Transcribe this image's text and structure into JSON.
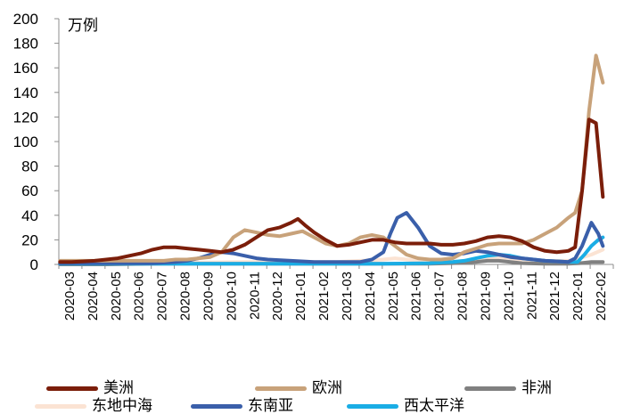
{
  "chart_data": {
    "type": "line",
    "title": "",
    "unit_label": "万例",
    "xlabel": "",
    "ylabel": "万例",
    "ylim": [
      0,
      200
    ],
    "yticks": [
      0,
      20,
      40,
      60,
      80,
      100,
      120,
      140,
      160,
      180,
      200
    ],
    "grid": false,
    "legend_position": "bottom",
    "categories": [
      "2020-03",
      "2020-04",
      "2020-05",
      "2020-06",
      "2020-07",
      "2020-08",
      "2020-09",
      "2020-10",
      "2020-11",
      "2020-12",
      "2021-01",
      "2021-02",
      "2021-03",
      "2021-04",
      "2021-05",
      "2021-06",
      "2021-07",
      "2021-08",
      "2021-09",
      "2021-10",
      "2021-11",
      "2021-12",
      "2022-01",
      "2022-02"
    ],
    "series": [
      {
        "name": "美洲",
        "color": "#7B1E0A",
        "x": [
          0,
          0.5,
          1,
          1.5,
          2,
          2.5,
          3,
          3.5,
          4,
          4.5,
          5,
          5.5,
          6,
          6.5,
          7,
          7.5,
          8,
          8.5,
          9,
          9.5,
          10,
          10.3,
          10.6,
          11,
          11.5,
          12,
          12.5,
          13,
          13.5,
          14,
          14.5,
          15,
          15.5,
          16,
          16.5,
          17,
          17.5,
          18,
          18.5,
          19,
          19.5,
          20,
          20.5,
          21,
          21.5,
          22,
          22.3,
          22.6,
          22.9,
          23.2,
          23.5
        ],
        "values": [
          2,
          2,
          2.5,
          3,
          4,
          5,
          7,
          9,
          12,
          14,
          14,
          13,
          12,
          11,
          10,
          12,
          16,
          22,
          28,
          30,
          34,
          37,
          32,
          26,
          20,
          15,
          16,
          18,
          20,
          20,
          18,
          17,
          17,
          17,
          16,
          16,
          17,
          19,
          22,
          23,
          22,
          19,
          14,
          11,
          10,
          11,
          14,
          60,
          118,
          115,
          55
        ]
      },
      {
        "name": "欧洲",
        "color": "#C8A27A",
        "x": [
          0,
          0.5,
          1,
          1.5,
          2,
          2.5,
          3,
          3.5,
          4,
          4.5,
          5,
          5.5,
          6,
          6.5,
          7,
          7.5,
          8,
          8.5,
          9,
          9.5,
          10,
          10.5,
          11,
          11.5,
          12,
          12.5,
          13,
          13.5,
          14,
          14.5,
          15,
          15.5,
          16,
          16.5,
          17,
          17.5,
          18,
          18.5,
          19,
          19.5,
          20,
          20.5,
          21,
          21.5,
          22,
          22.3,
          22.6,
          22.9,
          23.2,
          23.5
        ],
        "values": [
          3,
          3,
          3,
          3,
          3,
          3,
          3,
          3,
          3,
          3,
          4,
          4,
          5,
          6,
          10,
          22,
          28,
          26,
          24,
          23,
          25,
          27,
          22,
          17,
          15,
          17,
          22,
          24,
          22,
          15,
          8,
          5,
          4,
          4,
          5,
          10,
          13,
          16,
          17,
          17,
          17,
          20,
          25,
          30,
          38,
          42,
          60,
          125,
          170,
          148
        ]
      },
      {
        "name": "非洲",
        "color": "#808080",
        "x": [
          0,
          2,
          4,
          6,
          8,
          10,
          12,
          14,
          16,
          17,
          18,
          18.5,
          19,
          19.5,
          20,
          21,
          22,
          22.5,
          23,
          23.5
        ],
        "values": [
          0,
          0,
          0.5,
          0.5,
          0.5,
          0.5,
          0.5,
          0.5,
          0.5,
          1,
          2,
          3,
          3,
          2,
          1,
          0.5,
          0.5,
          1,
          2,
          2
        ]
      },
      {
        "name": "东地中海",
        "color": "#FBE3D3",
        "x": [
          0,
          2,
          4,
          6,
          8,
          10,
          12,
          13,
          14,
          14.5,
          15,
          15.5,
          16,
          17,
          18,
          19,
          20,
          21,
          22,
          22.5,
          23,
          23.5
        ],
        "values": [
          1,
          1,
          1,
          1.5,
          2,
          2,
          2,
          3,
          4,
          5,
          4,
          3,
          2,
          2,
          4,
          6,
          4,
          3,
          3,
          5,
          8,
          12
        ]
      },
      {
        "name": "东南亚",
        "color": "#3A5FAA",
        "x": [
          0,
          1,
          2,
          3,
          4,
          5,
          5.5,
          6,
          6.5,
          7,
          7.5,
          8,
          8.5,
          9,
          10,
          11,
          12,
          13,
          13.5,
          14,
          14.3,
          14.6,
          15,
          15.5,
          16,
          16.5,
          17,
          17.5,
          18,
          18.5,
          19,
          19.5,
          20,
          21,
          22,
          22.3,
          22.6,
          23,
          23.3,
          23.5
        ],
        "values": [
          1,
          1,
          1,
          1,
          1,
          2,
          3,
          5,
          8,
          10,
          9,
          7,
          5,
          4,
          3,
          2,
          2,
          2,
          4,
          10,
          25,
          38,
          42,
          30,
          15,
          9,
          8,
          9,
          11,
          10,
          8,
          6,
          5,
          3,
          2,
          5,
          15,
          34,
          25,
          15
        ]
      },
      {
        "name": "西太平洋",
        "color": "#1AADE5",
        "x": [
          0,
          2,
          4,
          6,
          8,
          10,
          12,
          14,
          16,
          17,
          17.5,
          18,
          18.5,
          19,
          19.5,
          20,
          21,
          22,
          22.4,
          22.7,
          23,
          23.3,
          23.5
        ],
        "values": [
          0.5,
          0.5,
          0.5,
          0.5,
          0.5,
          0.5,
          0.5,
          0.5,
          1,
          2,
          3,
          5,
          7,
          8,
          7,
          5,
          3,
          2,
          2,
          8,
          15,
          20,
          22
        ]
      }
    ]
  },
  "legend": {
    "items": [
      {
        "label": "美洲",
        "color": "#7B1E0A"
      },
      {
        "label": "欧洲",
        "color": "#C8A27A"
      },
      {
        "label": "非洲",
        "color": "#808080"
      },
      {
        "label": "东地中海",
        "color": "#FBE3D3"
      },
      {
        "label": "东南亚",
        "color": "#3A5FAA"
      },
      {
        "label": "西太平洋",
        "color": "#1AADE5"
      }
    ]
  }
}
